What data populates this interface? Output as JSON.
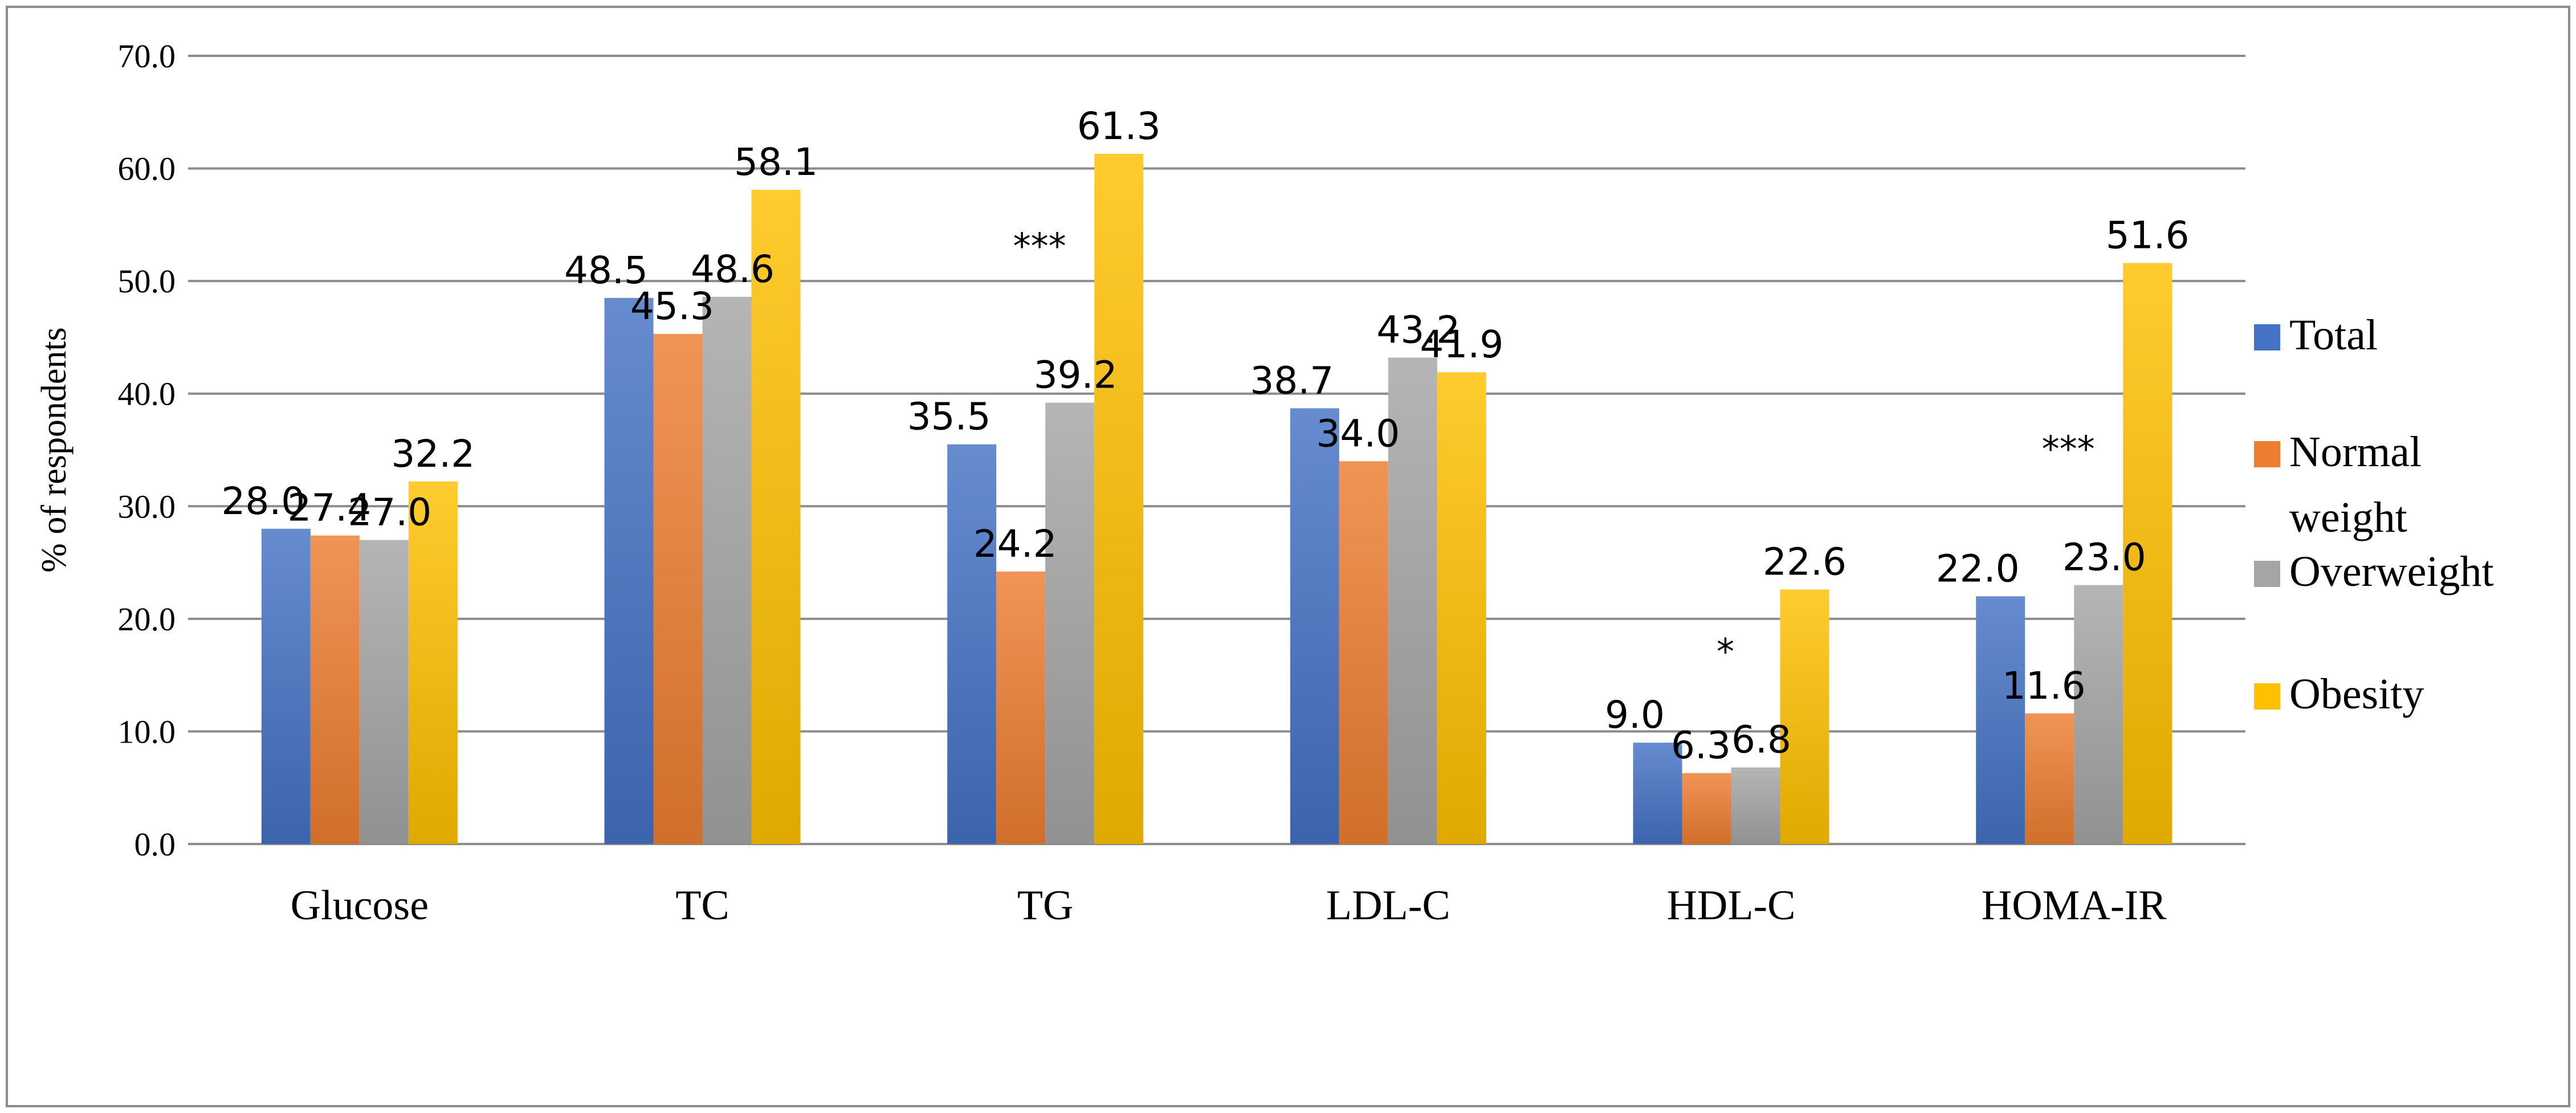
{
  "chart_data": {
    "type": "bar",
    "title": "",
    "xlabel": "",
    "ylabel": "% of respondents",
    "ylim": [
      0,
      70
    ],
    "yticks": [
      "0.0",
      "10.0",
      "20.0",
      "30.0",
      "40.0",
      "50.0",
      "60.0",
      "70.0"
    ],
    "grid": true,
    "legend_position": "right",
    "categories": [
      "Glucose",
      "TC",
      "TG",
      "LDL-C",
      "HDL-C",
      "HOMA-IR"
    ],
    "series": [
      {
        "name": "Total",
        "color": "#4472c4",
        "values": [
          28.0,
          48.5,
          35.5,
          38.7,
          9.0,
          22.0
        ],
        "labels": [
          "28.0",
          "48.5",
          "35.5",
          "38.7",
          "9.0",
          "22.0"
        ]
      },
      {
        "name": "Normal weight",
        "legend_lines": [
          "Normal",
          "weight"
        ],
        "color": "#ed7d31",
        "values": [
          27.4,
          45.3,
          24.2,
          34.0,
          6.3,
          11.6
        ],
        "labels": [
          "27.4",
          "45.3",
          "24.2",
          "34.0",
          "6.3",
          "11.6"
        ]
      },
      {
        "name": "Overweight",
        "color": "#a5a5a5",
        "values": [
          27.0,
          48.6,
          39.2,
          43.2,
          6.8,
          23.0
        ],
        "labels": [
          "27.0",
          "48.6",
          "39.2",
          "43.2",
          "6.8",
          "23.0"
        ]
      },
      {
        "name": "Obesity",
        "color": "#ffc000",
        "values": [
          32.2,
          58.1,
          61.3,
          41.9,
          22.6,
          51.6
        ],
        "labels": [
          "32.2",
          "58.1",
          "61.3",
          "41.9",
          "22.6",
          "51.6"
        ]
      }
    ],
    "annotations": [
      {
        "category": "TG",
        "text": "***",
        "y": 52
      },
      {
        "category": "HDL-C",
        "text": "*",
        "y": 16
      },
      {
        "category": "HOMA-IR",
        "text": "***",
        "y": 34
      }
    ]
  }
}
